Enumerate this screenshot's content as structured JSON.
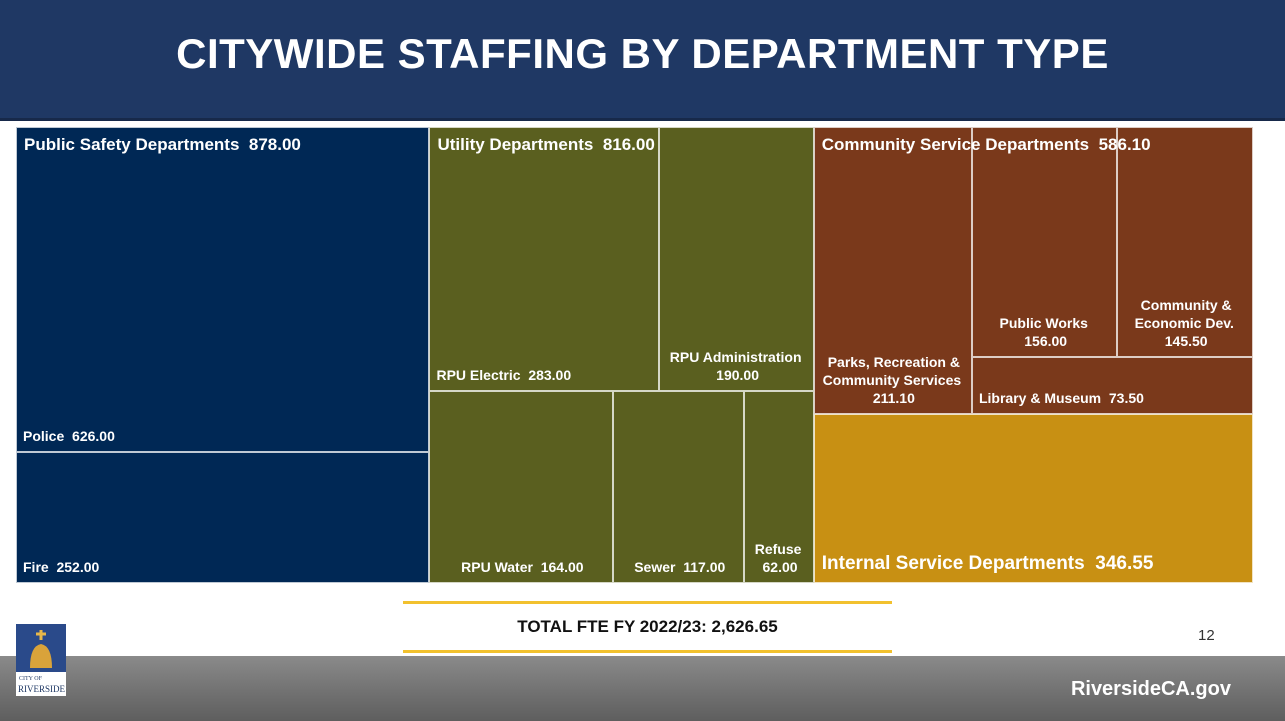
{
  "chart_data": {
    "type": "treemap",
    "title": "CITYWIDE STAFFING BY DEPARTMENT TYPE",
    "groups": [
      {
        "name": "Public Safety Departments",
        "value": 878,
        "value_label": "878.00",
        "color": "#002855",
        "children": [
          {
            "name": "Police",
            "value": 626,
            "value_label": "626.00"
          },
          {
            "name": "Fire",
            "value": 252,
            "value_label": "252.00"
          }
        ]
      },
      {
        "name": "Utility Departments",
        "value": 816,
        "value_label": "816.00",
        "color": "#5a5f1f",
        "children": [
          {
            "name": "RPU Electric",
            "value": 283,
            "value_label": "283.00"
          },
          {
            "name": "RPU Administration",
            "value": 190,
            "value_label": "190.00"
          },
          {
            "name": "RPU Water",
            "value": 164,
            "value_label": "164.00"
          },
          {
            "name": "Sewer",
            "value": 117,
            "value_label": "117.00"
          },
          {
            "name": "Refuse",
            "value": 62,
            "value_label": "62.00"
          }
        ]
      },
      {
        "name": "Community Service Departments",
        "value": 586.1,
        "value_label": "586.10",
        "color": "#7a391b",
        "children": [
          {
            "name": "Parks, Recreation & Community Services",
            "value": 211.1,
            "value_label": "211.10"
          },
          {
            "name": "Public Works",
            "value": 156,
            "value_label": "156.00"
          },
          {
            "name": "Community & Economic Dev.",
            "value": 145.5,
            "value_label": "145.50"
          },
          {
            "name": "Library & Museum",
            "value": 73.5,
            "value_label": "73.50"
          }
        ]
      },
      {
        "name": "Internal Service Departments",
        "value": 346.55,
        "value_label": "346.55",
        "color": "#c89013",
        "children": []
      }
    ]
  },
  "footer": {
    "total": "TOTAL FTE FY 2022/23: 2,626.65",
    "page": "12",
    "website": "RiversideCA.gov",
    "logo_top": "CITY OF",
    "logo_bottom": "RIVERSIDE"
  }
}
